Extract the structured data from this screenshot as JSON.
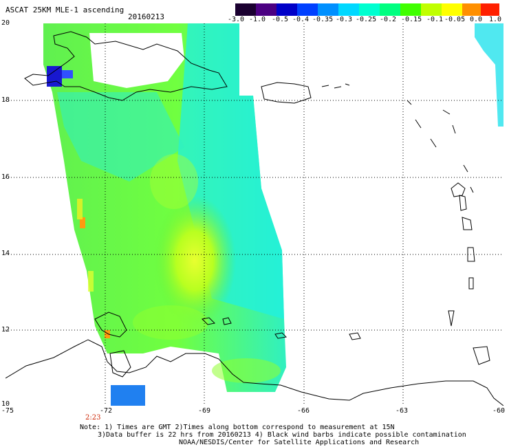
{
  "header": {
    "title": "ASCAT 25KM MLE-1 ascending",
    "date": "20160213"
  },
  "colorbar": {
    "labels": [
      "-3.0",
      "-1.0",
      "-0.5",
      "-0.4",
      "-0.35",
      "-0.3",
      "-0.25",
      "-0.2",
      "-0.15",
      "-0.1",
      "-0.05",
      "0.0",
      "1.0"
    ],
    "colors": [
      "#1a0030",
      "#4b0082",
      "#0000c8",
      "#0040ff",
      "#0090ff",
      "#00d8ff",
      "#00ffd0",
      "#00ff80",
      "#40ff00",
      "#c0ff00",
      "#ffff00",
      "#ff9000",
      "#ff2000"
    ]
  },
  "axes": {
    "lat_labels": [
      "20",
      "18",
      "16",
      "14",
      "12",
      "10"
    ],
    "lon_labels": [
      "-75",
      "-72",
      "-69",
      "-66",
      "-63",
      "-60"
    ],
    "time_label": "2:23",
    "time_color": "#cc2200"
  },
  "notes": {
    "line1": "Note: 1) Times are GMT 2)Times along bottom correspond to measurement at 15N",
    "line2": "3)Data buffer is 22 hrs from 20160213 4) Black wind barbs indicate possible contamination",
    "line3": "NOAA/NESDIS/Center for Satellite Applications and Research"
  }
}
